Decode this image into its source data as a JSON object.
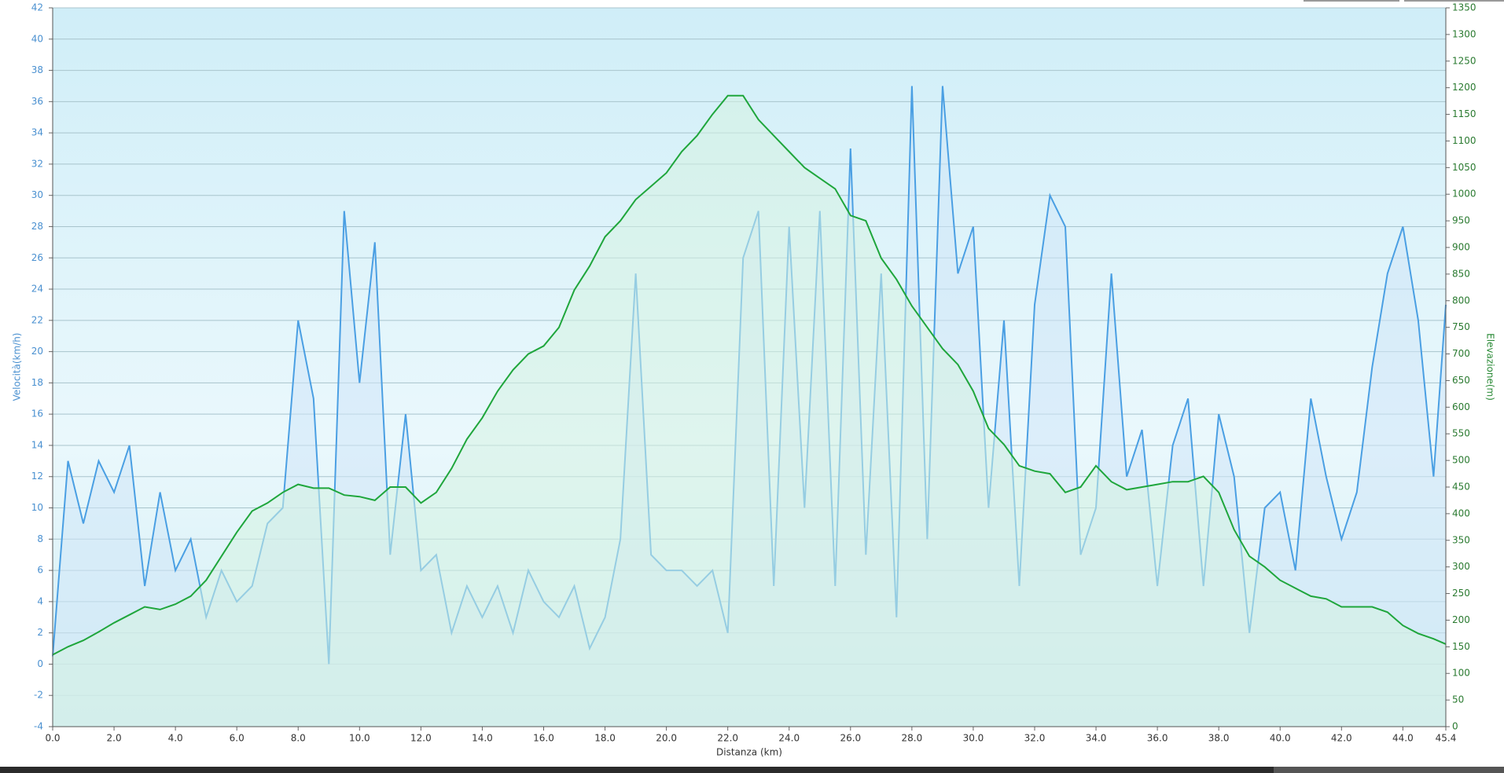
{
  "chart_data": {
    "type": "line",
    "x_label": "Distanza  (km)",
    "y_label": "Velocità(km/h)",
    "y2_label": "Elevazione(m)",
    "x": [
      0,
      0.5,
      1,
      1.5,
      2,
      2.5,
      3,
      3.5,
      4,
      4.5,
      5,
      5.5,
      6,
      6.5,
      7,
      7.5,
      8,
      8.5,
      9,
      9.5,
      10,
      10.5,
      11,
      11.5,
      12,
      12.5,
      13,
      13.5,
      14,
      14.5,
      15,
      15.5,
      16,
      16.5,
      17,
      17.5,
      18,
      18.5,
      19,
      19.5,
      20,
      20.5,
      21,
      21.5,
      22,
      22.5,
      23,
      23.5,
      24,
      24.5,
      25,
      25.5,
      26,
      26.5,
      27,
      27.5,
      28,
      28.5,
      29,
      29.5,
      30,
      30.5,
      31,
      31.5,
      32,
      32.5,
      33,
      33.5,
      34,
      34.5,
      35,
      35.5,
      36,
      36.5,
      37,
      37.5,
      38,
      38.5,
      39,
      39.5,
      40,
      40.5,
      41,
      41.5,
      42,
      42.5,
      43,
      43.5,
      44,
      44.5,
      45,
      45.4
    ],
    "series": [
      {
        "name": "Velocità",
        "color": "#4a9fe3",
        "fill": "#cfe6f8",
        "axis": "y",
        "values": [
          0.5,
          13,
          9,
          13,
          11,
          14,
          5,
          11,
          6,
          8,
          3,
          6,
          4,
          5,
          9,
          10,
          22,
          17,
          0,
          29,
          18,
          27,
          7,
          16,
          6,
          7,
          2,
          5,
          3,
          5,
          2,
          6,
          4,
          3,
          5,
          1,
          3,
          8,
          25,
          7,
          6,
          6,
          5,
          6,
          2,
          26,
          29,
          5,
          28,
          10,
          29,
          5,
          33,
          7,
          25,
          3,
          37,
          8,
          37,
          25,
          28,
          10,
          22,
          5,
          23,
          30,
          28,
          7,
          10,
          25,
          12,
          15,
          5,
          14,
          17,
          5,
          16,
          12,
          2,
          10,
          11,
          6,
          17,
          12,
          8,
          11,
          19,
          25,
          28,
          22,
          12,
          23
        ]
      },
      {
        "name": "Elevazione",
        "color": "#1fa63c",
        "fill": "#d6f3e2",
        "axis": "y2",
        "values": [
          135,
          150,
          162,
          178,
          195,
          210,
          225,
          220,
          230,
          245,
          275,
          320,
          365,
          405,
          420,
          440,
          455,
          448,
          448,
          435,
          432,
          425,
          450,
          450,
          420,
          440,
          485,
          540,
          580,
          630,
          670,
          700,
          715,
          750,
          820,
          865,
          920,
          950,
          990,
          1015,
          1040,
          1080,
          1110,
          1150,
          1185,
          1185,
          1140,
          1110,
          1080,
          1050,
          1030,
          1010,
          960,
          950,
          880,
          840,
          790,
          750,
          710,
          680,
          630,
          560,
          530,
          490,
          480,
          475,
          440,
          450,
          490,
          460,
          445,
          450,
          455,
          460,
          460,
          470,
          440,
          370,
          320,
          300,
          275,
          260,
          245,
          240,
          225,
          225,
          225,
          215,
          190,
          175,
          165,
          155
        ]
      }
    ],
    "xlim": [
      0,
      45.4
    ],
    "xticks": [
      {
        "value": 0,
        "label": "0.0"
      },
      {
        "value": 2,
        "label": "2.0"
      },
      {
        "value": 4,
        "label": "4.0"
      },
      {
        "value": 6,
        "label": "6.0"
      },
      {
        "value": 8,
        "label": "8.0"
      },
      {
        "value": 10,
        "label": "10.0"
      },
      {
        "value": 12,
        "label": "12.0"
      },
      {
        "value": 14,
        "label": "14.0"
      },
      {
        "value": 16,
        "label": "16.0"
      },
      {
        "value": 18,
        "label": "18.0"
      },
      {
        "value": 20,
        "label": "20.0"
      },
      {
        "value": 22,
        "label": "22.0"
      },
      {
        "value": 24,
        "label": "24.0"
      },
      {
        "value": 26,
        "label": "26.0"
      },
      {
        "value": 28,
        "label": "28.0"
      },
      {
        "value": 30,
        "label": "30.0"
      },
      {
        "value": 32,
        "label": "32.0"
      },
      {
        "value": 34,
        "label": "34.0"
      },
      {
        "value": 36,
        "label": "36.0"
      },
      {
        "value": 38,
        "label": "38.0"
      },
      {
        "value": 40,
        "label": "40.0"
      },
      {
        "value": 42,
        "label": "42.0"
      },
      {
        "value": 44,
        "label": "44.0"
      },
      45.4
    ],
    "ylim": [
      -4,
      42
    ],
    "yticks": [
      -4,
      -2,
      0,
      2,
      4,
      6,
      8,
      10,
      12,
      14,
      16,
      18,
      20,
      22,
      24,
      26,
      28,
      30,
      32,
      34,
      36,
      38,
      40,
      42
    ],
    "y2lim": [
      0,
      1350
    ],
    "y2ticks": [
      0,
      50,
      100,
      150,
      200,
      250,
      300,
      350,
      400,
      450,
      500,
      550,
      600,
      650,
      700,
      750,
      800,
      850,
      900,
      950,
      1000,
      1050,
      1100,
      1150,
      1200,
      1250,
      1300,
      1350
    ],
    "grid": true
  }
}
